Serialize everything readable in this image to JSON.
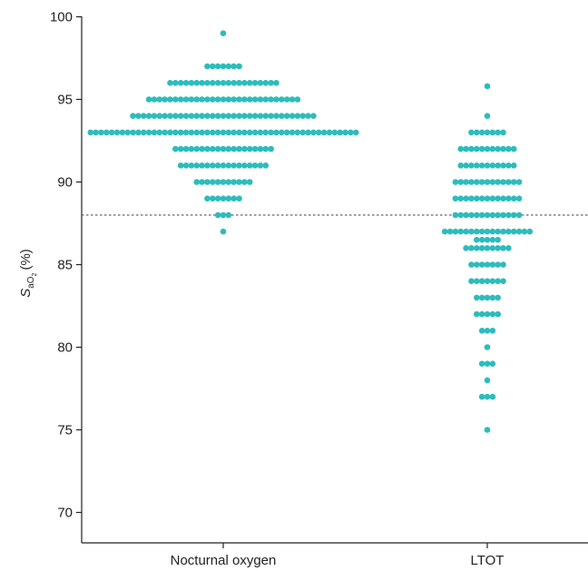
{
  "chart_data": {
    "type": "scatter",
    "subtype": "beeswarm",
    "title": "",
    "xlabel": "",
    "ylabel_parts": {
      "symbol": "S",
      "sub": "aO",
      "subsub": "2",
      "unit": "(%)"
    },
    "ylim": [
      68,
      100
    ],
    "yticks": [
      70,
      75,
      80,
      85,
      90,
      95,
      100
    ],
    "categories": [
      "Nocturnal oxygen",
      "LTOT"
    ],
    "reference_line": {
      "y": 88,
      "style": "dotted"
    },
    "color": "#2cbcbc",
    "series": [
      {
        "category": "Nocturnal oxygen",
        "counts": [
          {
            "value": 99,
            "count": 1
          },
          {
            "value": 97,
            "count": 7
          },
          {
            "value": 96,
            "count": 21
          },
          {
            "value": 95,
            "count": 29
          },
          {
            "value": 94,
            "count": 35
          },
          {
            "value": 93,
            "count": 51
          },
          {
            "value": 92,
            "count": 19
          },
          {
            "value": 91,
            "count": 17
          },
          {
            "value": 90,
            "count": 11
          },
          {
            "value": 89,
            "count": 7
          },
          {
            "value": 88,
            "count": 3
          },
          {
            "value": 87,
            "count": 1
          }
        ]
      },
      {
        "category": "LTOT",
        "counts": [
          {
            "value": 95.8,
            "count": 1
          },
          {
            "value": 94,
            "count": 1
          },
          {
            "value": 93,
            "count": 7
          },
          {
            "value": 92,
            "count": 11
          },
          {
            "value": 91,
            "count": 11
          },
          {
            "value": 90,
            "count": 13
          },
          {
            "value": 89,
            "count": 13
          },
          {
            "value": 88,
            "count": 13
          },
          {
            "value": 87,
            "count": 17
          },
          {
            "value": 86.5,
            "count": 5
          },
          {
            "value": 86,
            "count": 9
          },
          {
            "value": 85,
            "count": 7
          },
          {
            "value": 84,
            "count": 7
          },
          {
            "value": 83,
            "count": 5
          },
          {
            "value": 82,
            "count": 5
          },
          {
            "value": 81,
            "count": 3
          },
          {
            "value": 80,
            "count": 1
          },
          {
            "value": 79,
            "count": 3
          },
          {
            "value": 78,
            "count": 1
          },
          {
            "value": 77,
            "count": 3
          },
          {
            "value": 75,
            "count": 1
          }
        ]
      }
    ]
  }
}
